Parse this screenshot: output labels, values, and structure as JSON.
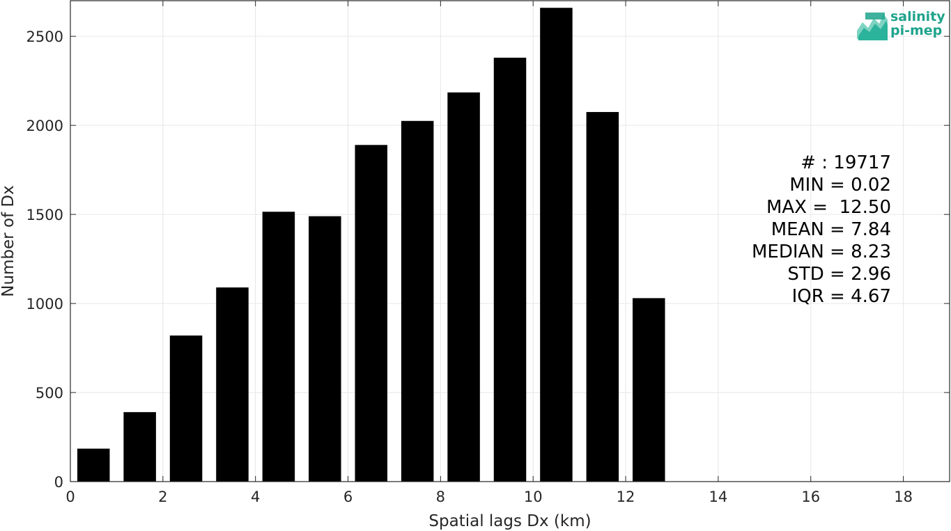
{
  "chart_data": {
    "type": "bar",
    "xlabel": "Spatial lags Dx (km)",
    "ylabel": "Number of Dx",
    "xlim": [
      0,
      19
    ],
    "ylim": [
      0,
      2700
    ],
    "xticks": [
      0,
      2,
      4,
      6,
      8,
      10,
      12,
      14,
      16,
      18
    ],
    "yticks": [
      0,
      500,
      1000,
      1500,
      2000,
      2500
    ],
    "grid": true,
    "bin_width": 1,
    "bar_width": 0.7,
    "x": [
      0.5,
      1.5,
      2.5,
      3.5,
      4.5,
      5.5,
      6.5,
      7.5,
      8.5,
      9.5,
      10.5,
      11.5,
      12.5
    ],
    "values": [
      185,
      390,
      820,
      1090,
      1515,
      1490,
      1890,
      2025,
      2185,
      2380,
      2660,
      2075,
      1030
    ],
    "bar_color": "#000000"
  },
  "stats": {
    "count": "# : 19717",
    "min": "MIN = 0.02",
    "max": "MAX =  12.50",
    "mean": "MEAN = 7.84",
    "median": "MEDIAN = 8.23",
    "std": "STD = 2.96",
    "iqr": "IQR = 4.67"
  },
  "logo": {
    "line1": "salinity",
    "line2": "pi-mep",
    "color": "#1fa38c"
  }
}
